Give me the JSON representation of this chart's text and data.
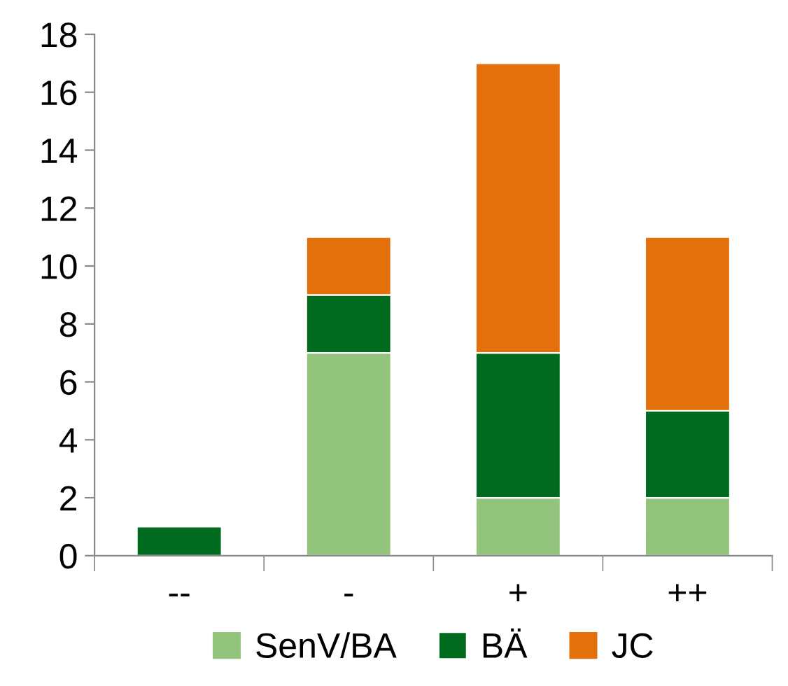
{
  "chart_data": {
    "type": "bar",
    "stacked": true,
    "categories": [
      "--",
      "-",
      "+",
      "++"
    ],
    "series": [
      {
        "name": "SenV/BA",
        "color": "#93c47d",
        "values": [
          0,
          7,
          2,
          2
        ]
      },
      {
        "name": "BÄ",
        "color": "#006b1e",
        "values": [
          1,
          2,
          5,
          3
        ]
      },
      {
        "name": "JC",
        "color": "#e3700b",
        "values": [
          0,
          2,
          10,
          6
        ]
      }
    ],
    "ylim": [
      0,
      18
    ],
    "yticks": [
      0,
      2,
      4,
      6,
      8,
      10,
      12,
      14,
      16,
      18
    ],
    "grid": false,
    "legend": "bottom"
  }
}
